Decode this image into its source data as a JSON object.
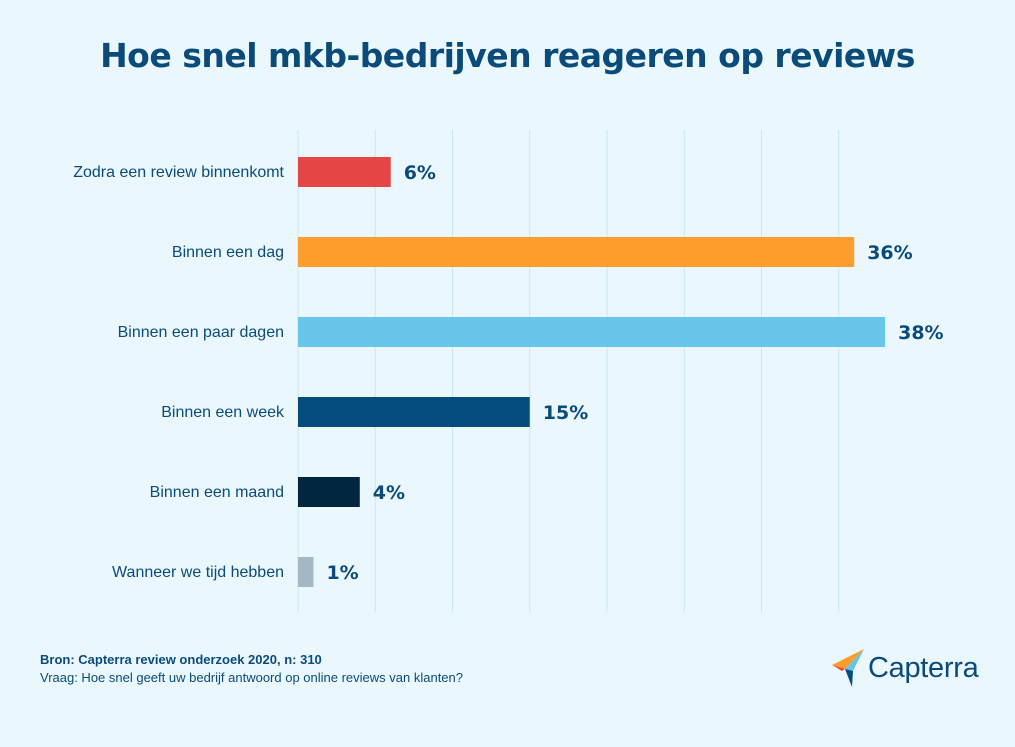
{
  "chart_data": {
    "type": "bar",
    "orientation": "horizontal",
    "title": "Hoe snel mkb-bedrijven reageren op reviews",
    "categories": [
      "Zodra een review binnenkomt",
      "Binnen een dag",
      "Binnen een paar dagen",
      "Binnen een week",
      "Binnen een maand",
      "Wanneer we tijd hebben"
    ],
    "values": [
      6,
      36,
      38,
      15,
      4,
      1
    ],
    "value_labels": [
      "6%",
      "36%",
      "38%",
      "15%",
      "4%",
      "1%"
    ],
    "colors": [
      "#e64545",
      "#ff9e2c",
      "#68c5ec",
      "#054c7e",
      "#02263f",
      "#a3b8c4"
    ],
    "xlim": [
      0,
      40
    ],
    "grid_step": 5,
    "grid": true,
    "xlabel": "",
    "ylabel": ""
  },
  "footer": {
    "source": "Bron: Capterra review onderzoek 2020, n: 310",
    "question": "Vraag: Hoe snel geeft uw bedrijf antwoord op online reviews van klanten?"
  },
  "brand": {
    "name": "Capterra",
    "logo_icon": "capterra-arrow-icon",
    "logo_colors": [
      "#ff9d28",
      "#68c3ec",
      "#044d80",
      "#e54747"
    ]
  }
}
